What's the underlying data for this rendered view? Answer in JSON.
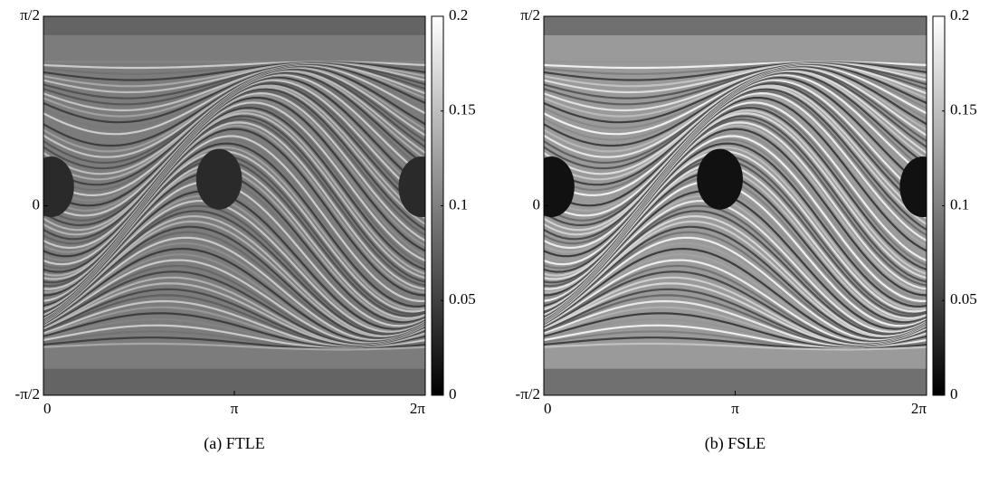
{
  "chart_data": [
    {
      "type": "heatmap",
      "caption": "(a) FTLE",
      "colormap": "gray",
      "xlim": [
        0,
        6.28319
      ],
      "xticks": [
        0,
        {
          "value": 3.14159,
          "label": "π"
        },
        {
          "value": 6.28319,
          "label": "2π"
        }
      ],
      "ylim": [
        -1.5708,
        1.5708
      ],
      "yticks": [
        {
          "value": -1.5708,
          "label": "-π/2"
        },
        0,
        {
          "value": 1.5708,
          "label": "π/2"
        }
      ],
      "clim": [
        0,
        0.2
      ],
      "cticks": [
        0,
        0.05,
        0.1,
        0.15,
        0.2
      ]
    },
    {
      "type": "heatmap",
      "caption": "(b) FSLE",
      "colormap": "gray",
      "xlim": [
        0,
        6.28319
      ],
      "xticks": [
        0,
        {
          "value": 3.14159,
          "label": "π"
        },
        {
          "value": 6.28319,
          "label": "2π"
        }
      ],
      "ylim": [
        -1.5708,
        1.5708
      ],
      "yticks": [
        {
          "value": -1.5708,
          "label": "-π/2"
        },
        0,
        {
          "value": 1.5708,
          "label": "π/2"
        }
      ],
      "clim": [
        0,
        0.2
      ],
      "cticks": [
        0,
        0.05,
        0.1,
        0.15,
        0.2
      ]
    }
  ]
}
